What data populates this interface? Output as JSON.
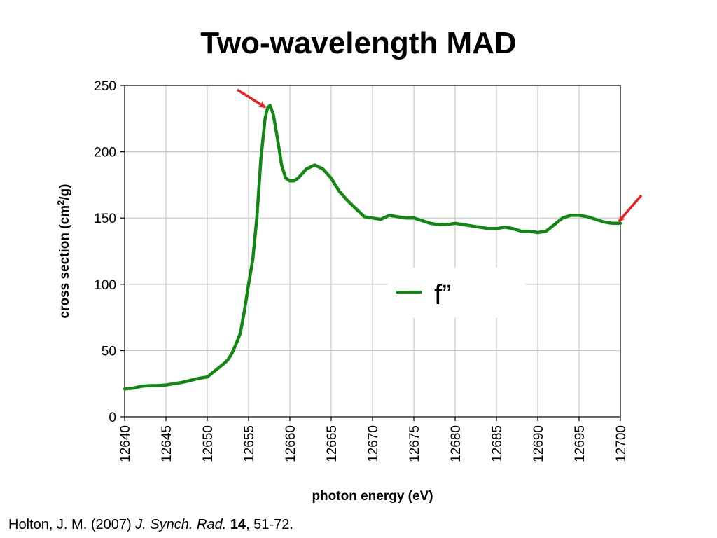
{
  "slide": {
    "title": "Two-wavelength MAD"
  },
  "chart_data": {
    "type": "line",
    "title": "Two-wavelength MAD",
    "xlabel": "photon energy (eV)",
    "ylabel": "cross section (cm²/g)",
    "ylabel_parts": {
      "before": "cross section (cm",
      "sup": "2",
      "after": "/g)"
    },
    "xlim": [
      12640,
      12700
    ],
    "ylim": [
      0,
      250
    ],
    "x_ticks": [
      12640,
      12645,
      12650,
      12655,
      12660,
      12665,
      12670,
      12675,
      12680,
      12685,
      12690,
      12695,
      12700
    ],
    "y_ticks": [
      0,
      50,
      100,
      150,
      200,
      250
    ],
    "grid": true,
    "legend_position": "center-right",
    "series": [
      {
        "name": "f”",
        "color": "#118811",
        "x": [
          12640,
          12641,
          12642,
          12643,
          12644,
          12645,
          12646,
          12647,
          12648,
          12649,
          12650,
          12651,
          12652,
          12652.5,
          12653,
          12653.5,
          12654,
          12654.5,
          12655,
          12655.5,
          12656,
          12656.5,
          12657,
          12657.3,
          12657.6,
          12658,
          12658.5,
          12659,
          12659.5,
          12660,
          12660.5,
          12661,
          12662,
          12663,
          12664,
          12665,
          12666,
          12667,
          12668,
          12669,
          12670,
          12671,
          12672,
          12673,
          12674,
          12675,
          12676,
          12677,
          12678,
          12679,
          12680,
          12681,
          12682,
          12683,
          12684,
          12685,
          12686,
          12687,
          12688,
          12689,
          12690,
          12691,
          12692,
          12693,
          12694,
          12695,
          12696,
          12697,
          12698,
          12699,
          12700
        ],
        "values": [
          21,
          21.5,
          23,
          23.5,
          23.5,
          24,
          25,
          26,
          27.5,
          29,
          30,
          35,
          40,
          43,
          48,
          55,
          63,
          80,
          100,
          118,
          150,
          195,
          225,
          233,
          235,
          228,
          210,
          190,
          180,
          178,
          178,
          180,
          187,
          190,
          187,
          180,
          170,
          163,
          157,
          151,
          150,
          149,
          152,
          151,
          150,
          150,
          148,
          146,
          145,
          145,
          146,
          145,
          144,
          143,
          142,
          142,
          143,
          142,
          140,
          140,
          139,
          140,
          145,
          150,
          152,
          152,
          151,
          149,
          147,
          146,
          146
        ]
      }
    ],
    "annotations": [
      {
        "type": "arrow",
        "label": "peak-arrow",
        "x": 12657.2,
        "y": 233,
        "color": "#ee1c1c"
      },
      {
        "type": "arrow",
        "label": "remote-arrow",
        "x": 12700,
        "y": 147,
        "color": "#ee1c1c"
      }
    ]
  },
  "citation": {
    "authors_year": "Holton, J. M. (2007) ",
    "journal": "J. Synch. Rad.",
    "space": " ",
    "volume": "14",
    "pages": ", 51-72."
  }
}
